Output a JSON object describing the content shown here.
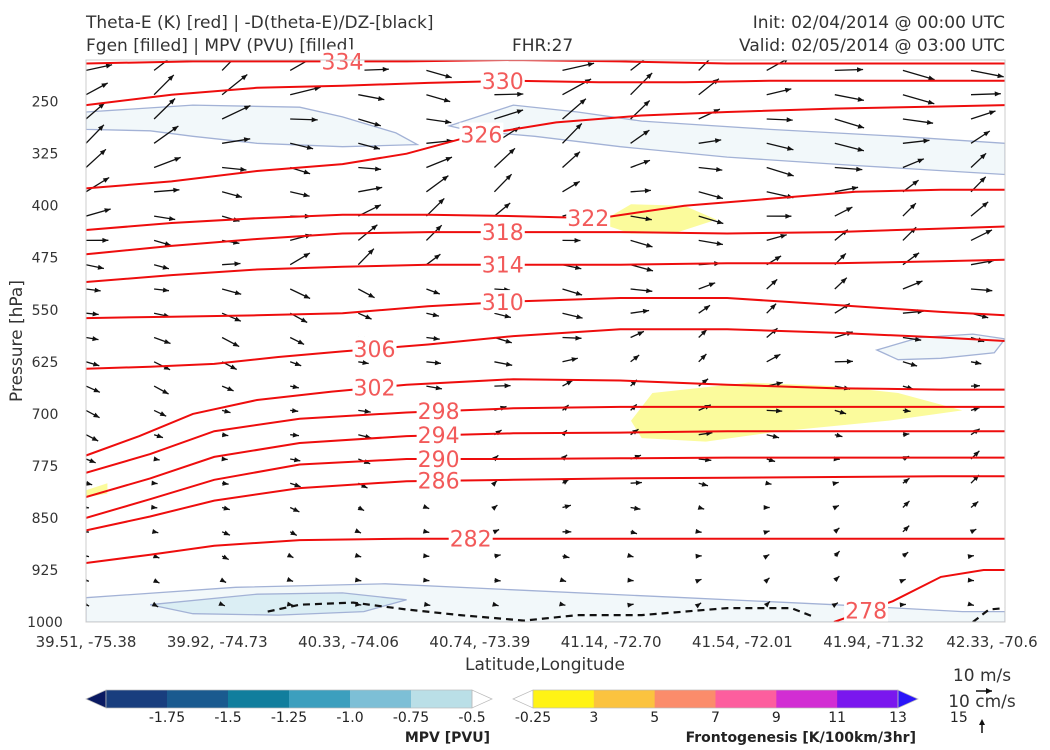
{
  "header": {
    "title_left_1": "Theta-E (K) [red] | -D(theta-E)/DZ-[black]",
    "title_left_2": "Fgen [filled] | MPV (PVU) [filled]",
    "fhr": "FHR:27",
    "init": "Init: 02/04/2014 @ 00:00 UTC",
    "valid": "Valid: 02/05/2014 @ 03:00 UTC"
  },
  "chart_data": {
    "type": "cross-section",
    "xlabel": "Latitude,Longitude",
    "ylabel": "Pressure [hPa]",
    "x_ticks": [
      "39.51, -75.38",
      "39.92, -74.73",
      "40.33, -74.06",
      "40.74, -73.39",
      "41.14, -72.70",
      "41.54, -72.01",
      "41.94, -71.32",
      "42.33, -70.6"
    ],
    "y_ticks": [
      250,
      325,
      400,
      475,
      550,
      625,
      700,
      775,
      850,
      925,
      1000
    ],
    "ylim": [
      1000,
      190
    ],
    "theta_e_contours": [
      {
        "level": 278,
        "label": "278",
        "points": [
          [
            7.0,
            1000
          ],
          [
            7.55,
            970
          ],
          [
            8.0,
            935
          ],
          [
            8.4,
            925
          ],
          [
            8.6,
            925
          ]
        ]
      },
      {
        "level": 282,
        "label": "282",
        "points": [
          [
            0,
            915
          ],
          [
            0.6,
            903
          ],
          [
            1.2,
            890
          ],
          [
            2.0,
            882
          ],
          [
            3.0,
            880
          ],
          [
            4.0,
            880
          ],
          [
            5.0,
            880
          ],
          [
            6.0,
            880
          ],
          [
            7.0,
            880
          ],
          [
            8.0,
            880
          ],
          [
            8.6,
            880
          ]
        ]
      },
      {
        "level": 286,
        "label": "286",
        "points": [
          [
            0,
            868
          ],
          [
            0.6,
            848
          ],
          [
            1.2,
            825
          ],
          [
            2.0,
            807
          ],
          [
            3.0,
            797
          ],
          [
            4.0,
            795
          ],
          [
            5.0,
            793
          ],
          [
            6.0,
            792
          ],
          [
            7.0,
            791
          ],
          [
            8.0,
            790
          ],
          [
            8.6,
            790
          ]
        ]
      },
      {
        "level": 290,
        "label": "290",
        "points": [
          [
            0,
            850
          ],
          [
            0.6,
            823
          ],
          [
            1.2,
            795
          ],
          [
            2.0,
            773
          ],
          [
            3.0,
            765
          ],
          [
            4.0,
            765
          ],
          [
            5.0,
            764
          ],
          [
            6.0,
            763
          ],
          [
            7.0,
            763
          ],
          [
            8.0,
            763
          ],
          [
            8.6,
            763
          ]
        ]
      },
      {
        "level": 294,
        "label": "294",
        "points": [
          [
            0,
            820
          ],
          [
            0.6,
            793
          ],
          [
            1.2,
            762
          ],
          [
            2.0,
            742
          ],
          [
            3.0,
            732
          ],
          [
            4.0,
            728
          ],
          [
            5.0,
            727
          ],
          [
            6.0,
            725
          ],
          [
            7.0,
            725
          ],
          [
            8.0,
            725
          ],
          [
            8.6,
            725
          ]
        ]
      },
      {
        "level": 298,
        "label": "298",
        "points": [
          [
            0,
            785
          ],
          [
            0.6,
            758
          ],
          [
            1.2,
            725
          ],
          [
            2.0,
            707
          ],
          [
            3.0,
            698
          ],
          [
            4.0,
            692
          ],
          [
            5.0,
            690
          ],
          [
            6.0,
            690
          ],
          [
            7.0,
            690
          ],
          [
            8.0,
            690
          ],
          [
            8.6,
            690
          ]
        ]
      },
      {
        "level": 302,
        "label": "302",
        "points": [
          [
            0,
            760
          ],
          [
            0.5,
            732
          ],
          [
            1.0,
            700
          ],
          [
            1.6,
            680
          ],
          [
            2.3,
            668
          ],
          [
            3.0,
            658
          ],
          [
            4.0,
            650
          ],
          [
            5.0,
            652
          ],
          [
            6.0,
            658
          ],
          [
            7.0,
            663
          ],
          [
            8.0,
            665
          ],
          [
            8.6,
            665
          ]
        ]
      },
      {
        "level": 306,
        "label": "306",
        "points": [
          [
            0,
            635
          ],
          [
            0.6,
            632
          ],
          [
            1.2,
            628
          ],
          [
            1.8,
            618
          ],
          [
            2.4,
            610
          ],
          [
            3.2,
            600
          ],
          [
            4.0,
            588
          ],
          [
            5.0,
            578
          ],
          [
            6.0,
            578
          ],
          [
            7.0,
            583
          ],
          [
            8.0,
            590
          ],
          [
            8.6,
            595
          ]
        ]
      },
      {
        "level": 310,
        "label": "310",
        "points": [
          [
            0,
            562
          ],
          [
            0.8,
            560
          ],
          [
            1.6,
            558
          ],
          [
            2.4,
            555
          ],
          [
            3.2,
            545
          ],
          [
            4.0,
            538
          ],
          [
            5.0,
            533
          ],
          [
            6.0,
            533
          ],
          [
            7.0,
            543
          ],
          [
            8.0,
            553
          ],
          [
            8.6,
            558
          ]
        ]
      },
      {
        "level": 314,
        "label": "314",
        "points": [
          [
            0,
            510
          ],
          [
            0.8,
            500
          ],
          [
            1.6,
            492
          ],
          [
            2.4,
            488
          ],
          [
            3.2,
            485
          ],
          [
            4.0,
            485
          ],
          [
            5.0,
            485
          ],
          [
            6.0,
            483
          ],
          [
            7.0,
            483
          ],
          [
            8.0,
            480
          ],
          [
            8.6,
            478
          ]
        ]
      },
      {
        "level": 318,
        "label": "318",
        "points": [
          [
            0,
            470
          ],
          [
            0.8,
            458
          ],
          [
            1.6,
            448
          ],
          [
            2.4,
            440
          ],
          [
            3.2,
            438
          ],
          [
            4.0,
            438
          ],
          [
            5.0,
            438
          ],
          [
            6.0,
            440
          ],
          [
            7.0,
            438
          ],
          [
            8.0,
            433
          ],
          [
            8.6,
            430
          ]
        ]
      },
      {
        "level": 322,
        "label": "322",
        "points": [
          [
            0,
            435
          ],
          [
            0.8,
            425
          ],
          [
            1.6,
            418
          ],
          [
            2.4,
            413
          ],
          [
            3.2,
            413
          ],
          [
            4.0,
            415
          ],
          [
            4.8,
            418
          ],
          [
            5.6,
            400
          ],
          [
            6.4,
            390
          ],
          [
            7.2,
            380
          ],
          [
            8.0,
            377
          ],
          [
            8.6,
            377
          ]
        ]
      },
      {
        "level": 326,
        "label": "326",
        "points": [
          [
            0,
            375
          ],
          [
            0.8,
            365
          ],
          [
            1.6,
            350
          ],
          [
            2.4,
            340
          ],
          [
            3.0,
            325
          ],
          [
            3.6,
            300
          ],
          [
            4.4,
            280
          ],
          [
            5.2,
            270
          ],
          [
            6.0,
            265
          ],
          [
            7.0,
            260
          ],
          [
            8.0,
            257
          ],
          [
            8.6,
            255
          ]
        ]
      },
      {
        "level": 330,
        "label": "330",
        "points": [
          [
            0,
            255
          ],
          [
            0.8,
            240
          ],
          [
            1.6,
            230
          ],
          [
            2.4,
            227
          ],
          [
            3.2,
            223
          ],
          [
            4.0,
            220
          ],
          [
            4.8,
            222
          ],
          [
            5.6,
            222
          ],
          [
            6.4,
            220
          ],
          [
            7.2,
            220
          ],
          [
            8.0,
            220
          ],
          [
            8.6,
            220
          ]
        ]
      },
      {
        "level": 334,
        "label": "334",
        "points": [
          [
            0,
            195
          ],
          [
            1.0,
            192
          ],
          [
            2.0,
            192
          ],
          [
            3.0,
            192
          ],
          [
            4.0,
            190
          ],
          [
            5.0,
            192
          ],
          [
            6.0,
            195
          ],
          [
            7.0,
            195
          ],
          [
            8.0,
            195
          ],
          [
            8.6,
            195
          ]
        ]
      }
    ],
    "mpv_regions": [
      {
        "level": -0.25,
        "points": [
          [
            0,
            265
          ],
          [
            1.0,
            255
          ],
          [
            2.0,
            258
          ],
          [
            2.4,
            272
          ],
          [
            2.9,
            295
          ],
          [
            3.1,
            312
          ],
          [
            2.4,
            315
          ],
          [
            1.6,
            310
          ],
          [
            1.0,
            300
          ],
          [
            0.6,
            292
          ],
          [
            0,
            290
          ]
        ]
      },
      {
        "level": -0.25,
        "points": [
          [
            3.4,
            285
          ],
          [
            4.0,
            255
          ],
          [
            4.6,
            265
          ],
          [
            5.2,
            278
          ],
          [
            6.4,
            290
          ],
          [
            7.6,
            300
          ],
          [
            8.6,
            310
          ],
          [
            8.6,
            355
          ],
          [
            7.2,
            342
          ],
          [
            6.0,
            330
          ],
          [
            5.0,
            315
          ],
          [
            4.2,
            300
          ],
          [
            3.6,
            292
          ]
        ]
      },
      {
        "level": -0.25,
        "points": [
          [
            7.4,
            608
          ],
          [
            7.8,
            590
          ],
          [
            8.3,
            585
          ],
          [
            8.6,
            592
          ],
          [
            8.5,
            612
          ],
          [
            8.0,
            620
          ],
          [
            7.6,
            622
          ]
        ]
      },
      {
        "level": -0.25,
        "points": [
          [
            0,
            965
          ],
          [
            1.4,
            950
          ],
          [
            2.8,
            945
          ],
          [
            4.2,
            955
          ],
          [
            5.6,
            965
          ],
          [
            7.0,
            975
          ],
          [
            8.2,
            985
          ],
          [
            8.6,
            985
          ],
          [
            8.6,
            1000
          ],
          [
            0,
            1000
          ]
        ]
      },
      {
        "level": -0.5,
        "points": [
          [
            0.6,
            975
          ],
          [
            1.6,
            960
          ],
          [
            2.4,
            958
          ],
          [
            3.0,
            968
          ],
          [
            2.6,
            985
          ],
          [
            1.8,
            990
          ],
          [
            1.0,
            988
          ]
        ]
      }
    ],
    "fgen_regions": [
      {
        "level": 3,
        "points": [
          [
            4.8,
            425
          ],
          [
            5.1,
            398
          ],
          [
            5.6,
            400
          ],
          [
            5.9,
            420
          ],
          [
            5.5,
            440
          ],
          [
            5.1,
            440
          ]
        ]
      },
      {
        "level": 3,
        "points": [
          [
            5.1,
            710
          ],
          [
            5.3,
            670
          ],
          [
            6.2,
            655
          ],
          [
            7.0,
            660
          ],
          [
            7.6,
            670
          ],
          [
            8.2,
            695
          ],
          [
            7.5,
            710
          ],
          [
            6.5,
            725
          ],
          [
            5.8,
            740
          ],
          [
            5.2,
            735
          ]
        ]
      },
      {
        "level": 3,
        "points": [
          [
            0,
            810
          ],
          [
            0.2,
            800
          ],
          [
            0.2,
            815
          ],
          [
            0,
            820
          ]
        ]
      }
    ],
    "stability_contours": [
      {
        "label": "-D(theta-E)/DZ",
        "points": [
          [
            1.7,
            985
          ],
          [
            2.0,
            975
          ],
          [
            2.5,
            972
          ],
          [
            3.0,
            982
          ],
          [
            3.5,
            990
          ],
          [
            4.1,
            998
          ],
          [
            4.6,
            990
          ],
          [
            5.2,
            990
          ],
          [
            6.0,
            980
          ],
          [
            6.6,
            980
          ],
          [
            6.8,
            992
          ]
        ]
      },
      {
        "label": "-D(theta-E)/DZ",
        "points": [
          [
            8.3,
            1000
          ],
          [
            8.45,
            982
          ],
          [
            8.6,
            980
          ]
        ]
      }
    ],
    "wind_reference": [
      "10 m/s",
      "10 cm/s"
    ],
    "colorbars": [
      {
        "label": "MPV [PVU]",
        "ticks": [
          "-1.75",
          "-1.5",
          "-1.25",
          "-1.0",
          "-0.75",
          "-0.5",
          "-0.25"
        ],
        "colors": [
          "#0a1a62",
          "#193e7e",
          "#1a5a8f",
          "#117e9d",
          "#3c9fbe",
          "#7dbfd6",
          "#badfe7",
          "#ffffff"
        ]
      },
      {
        "label": "Frontogenesis [K/100km/3hr]",
        "ticks": [
          "3",
          "5",
          "7",
          "9",
          "11",
          "13",
          "15"
        ],
        "colors": [
          "#ffffff",
          "#fff315",
          "#fbc33f",
          "#fb8c6b",
          "#fd5e9e",
          "#d22ed3",
          "#7a17ee",
          "#2a15f9"
        ]
      }
    ]
  }
}
